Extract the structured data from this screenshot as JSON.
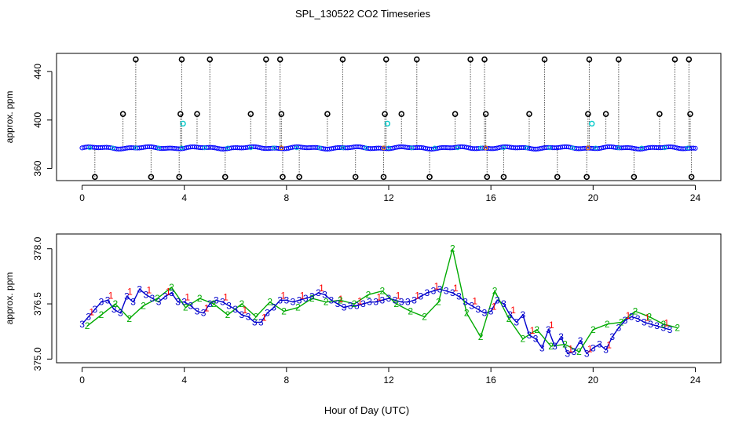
{
  "figure": {
    "title": "SPL_130522  CO2 Timeseries",
    "xlabel": "Hour of Day (UTC)"
  },
  "colors": {
    "raw": "#000000",
    "series1": "#0000ff",
    "series2": "#00c8c8",
    "flag": "#ff8800",
    "ch1": "#ff0000",
    "ch2": "#00aa00",
    "ch3": "#0000cc"
  },
  "chart_data": [
    {
      "type": "scatter",
      "title": "",
      "xlabel": "",
      "ylabel": "approx. ppm",
      "xlim": [
        -1,
        25
      ],
      "ylim": [
        350,
        455
      ],
      "xticks": [
        0,
        4,
        8,
        12,
        16,
        20,
        24
      ],
      "xtick_labels": [
        "0",
        "4",
        "8",
        "12",
        "16",
        "20",
        "24"
      ],
      "yticks": [
        360,
        400,
        440
      ],
      "ytick_labels": [
        "360",
        "400",
        "440"
      ],
      "baseline": 377,
      "raw_spikes": [
        {
          "x": 0.5,
          "y": 353
        },
        {
          "x": 1.6,
          "y": 405
        },
        {
          "x": 2.1,
          "y": 450
        },
        {
          "x": 2.7,
          "y": 353
        },
        {
          "x": 3.8,
          "y": 353
        },
        {
          "x": 3.85,
          "y": 405
        },
        {
          "x": 3.9,
          "y": 450
        },
        {
          "x": 4.5,
          "y": 405
        },
        {
          "x": 5.0,
          "y": 450
        },
        {
          "x": 5.6,
          "y": 353
        },
        {
          "x": 6.6,
          "y": 405
        },
        {
          "x": 7.2,
          "y": 450
        },
        {
          "x": 7.75,
          "y": 450
        },
        {
          "x": 7.8,
          "y": 405
        },
        {
          "x": 7.85,
          "y": 353
        },
        {
          "x": 8.5,
          "y": 353
        },
        {
          "x": 9.6,
          "y": 405
        },
        {
          "x": 10.2,
          "y": 450
        },
        {
          "x": 10.7,
          "y": 353
        },
        {
          "x": 11.8,
          "y": 353
        },
        {
          "x": 11.85,
          "y": 405
        },
        {
          "x": 11.9,
          "y": 450
        },
        {
          "x": 12.5,
          "y": 405
        },
        {
          "x": 13.1,
          "y": 450
        },
        {
          "x": 13.6,
          "y": 353
        },
        {
          "x": 14.6,
          "y": 405
        },
        {
          "x": 15.2,
          "y": 450
        },
        {
          "x": 15.75,
          "y": 450
        },
        {
          "x": 15.8,
          "y": 405
        },
        {
          "x": 15.85,
          "y": 353
        },
        {
          "x": 16.5,
          "y": 353
        },
        {
          "x": 17.5,
          "y": 405
        },
        {
          "x": 18.1,
          "y": 450
        },
        {
          "x": 18.6,
          "y": 353
        },
        {
          "x": 19.75,
          "y": 353
        },
        {
          "x": 19.8,
          "y": 405
        },
        {
          "x": 19.85,
          "y": 450
        },
        {
          "x": 20.5,
          "y": 405
        },
        {
          "x": 21.0,
          "y": 450
        },
        {
          "x": 21.6,
          "y": 353
        },
        {
          "x": 22.6,
          "y": 405
        },
        {
          "x": 23.2,
          "y": 450
        },
        {
          "x": 23.75,
          "y": 450
        },
        {
          "x": 23.8,
          "y": 405
        },
        {
          "x": 23.85,
          "y": 353
        }
      ],
      "cyan_points": [
        {
          "x": 3.95,
          "y": 397
        },
        {
          "x": 11.95,
          "y": 397
        },
        {
          "x": 19.95,
          "y": 397
        }
      ]
    },
    {
      "type": "line",
      "title": "",
      "xlabel": "Hour of Day (UTC)",
      "ylabel": "approx. ppm",
      "xlim": [
        -1,
        25
      ],
      "ylim": [
        374.9,
        378.4
      ],
      "xticks": [
        0,
        4,
        8,
        12,
        16,
        20,
        24
      ],
      "xtick_labels": [
        "0",
        "4",
        "8",
        "12",
        "16",
        "20",
        "24"
      ],
      "yticks": [
        375.0,
        376.5,
        378.0
      ],
      "ytick_labels": [
        "375.0",
        "376.5",
        "378.0"
      ],
      "series_labels": [
        "1",
        "2",
        "3"
      ],
      "x_step": 0.25,
      "x_start": 0,
      "values": [
        375.95,
        376.15,
        376.35,
        376.55,
        376.6,
        376.35,
        376.25,
        376.7,
        376.55,
        376.9,
        376.75,
        376.65,
        376.55,
        376.7,
        376.8,
        376.55,
        376.55,
        376.45,
        376.3,
        376.25,
        376.5,
        376.6,
        376.55,
        376.45,
        376.35,
        376.2,
        376.15,
        376.0,
        376.0,
        376.25,
        376.4,
        376.6,
        376.6,
        376.55,
        376.6,
        376.65,
        376.7,
        376.8,
        376.75,
        376.6,
        376.5,
        376.4,
        376.45,
        376.45,
        376.5,
        376.55,
        376.55,
        376.6,
        376.65,
        376.6,
        376.55,
        376.55,
        376.6,
        376.7,
        376.8,
        376.85,
        376.9,
        376.85,
        376.8,
        376.7,
        376.55,
        376.45,
        376.35,
        376.25,
        376.3,
        376.6,
        376.5,
        376.2,
        376.0,
        376.2,
        375.65,
        375.55,
        375.3,
        375.8,
        375.35,
        375.6,
        375.15,
        375.2,
        375.5,
        375.15,
        375.3,
        375.4,
        375.25,
        375.6,
        375.85,
        376.05,
        376.15,
        376.1,
        376.0,
        375.95,
        375.9,
        375.85,
        375.8
      ],
      "series2_values": [
        375.9,
        376.2,
        376.5,
        376.1,
        376.45,
        376.65,
        376.95,
        376.4,
        376.65,
        376.5,
        376.2,
        376.5,
        376.15,
        376.55,
        376.3,
        376.4,
        376.65,
        376.55,
        376.6,
        376.5,
        376.75,
        376.85,
        376.5,
        376.3,
        376.15,
        376.55,
        378.0,
        376.25,
        375.6,
        376.85,
        376.1,
        375.55,
        375.8,
        375.35,
        375.4,
        375.2,
        375.8,
        375.95,
        376.0,
        376.3,
        376.15,
        375.95,
        375.85
      ],
      "series2_x_start": 0.2,
      "series2_x_step": 0.55
    }
  ]
}
